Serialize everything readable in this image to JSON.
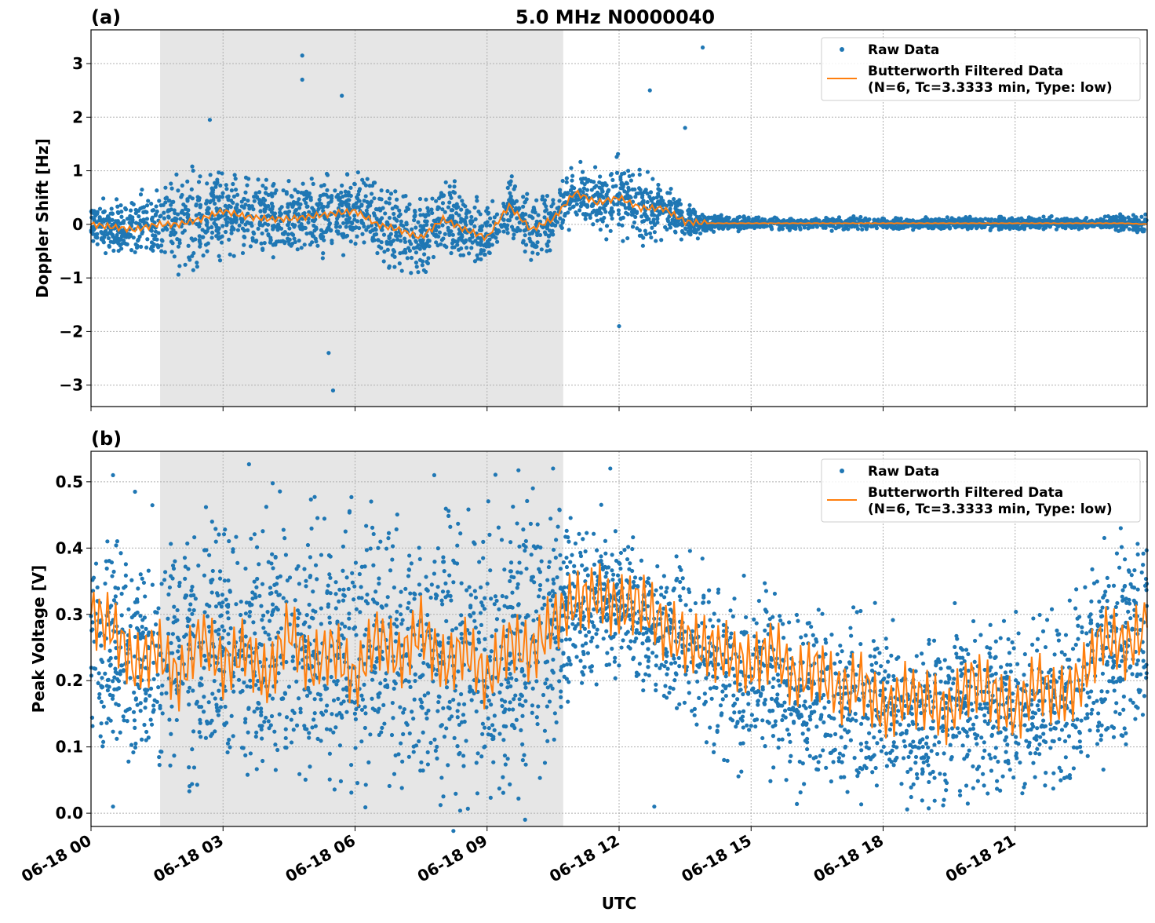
{
  "title": "5.0 MHz N0000040",
  "xlabel": "UTC",
  "colors": {
    "raw": "#1f77b4",
    "filtered": "#ff7f0e",
    "shade": "#e6e6e6"
  },
  "chart_data": [
    {
      "type": "scatter",
      "panel_label": "(a)",
      "ylabel": "Doppler Shift [Hz]",
      "xlim_hours": [
        0,
        24
      ],
      "ylim": [
        -3.4,
        3.63
      ],
      "x_ticks": [
        "06-18 00",
        "06-18 03",
        "06-18 06",
        "06-18 09",
        "06-18 12",
        "06-18 15",
        "06-18 18",
        "06-18 21"
      ],
      "x_tick_hours": [
        0,
        3,
        6,
        9,
        12,
        15,
        18,
        21
      ],
      "y_ticks": [
        "3",
        "2",
        "1",
        "0",
        "−1",
        "−2",
        "−3"
      ],
      "y_tick_values": [
        3,
        2,
        1,
        0,
        -1,
        -2,
        -3
      ],
      "grid": true,
      "shaded_interval_hours": [
        1.57,
        10.73
      ],
      "legend": {
        "position": "top-right",
        "entries": [
          "Raw Data",
          "Butterworth Filtered Data",
          "(N=6, Tc=3.3333 min, Type: low)"
        ]
      },
      "raw_envelope": {
        "hours": [
          0,
          1,
          2,
          3,
          4,
          5,
          6,
          7,
          8,
          9,
          10,
          11,
          12,
          13,
          14,
          15,
          16,
          17,
          18,
          19,
          20,
          21,
          22,
          23,
          24
        ],
        "low": [
          -0.4,
          -0.5,
          -0.8,
          -0.6,
          -0.5,
          -0.6,
          -0.6,
          -0.9,
          -0.8,
          -0.6,
          -0.4,
          -0.1,
          -0.1,
          -0.1,
          -0.1,
          -0.1,
          -0.1,
          -0.1,
          -0.1,
          -0.1,
          -0.1,
          -0.1,
          -0.1,
          -0.1,
          -0.3
        ],
        "high": [
          0.3,
          0.5,
          0.9,
          0.9,
          0.8,
          0.8,
          0.7,
          0.5,
          0.5,
          0.5,
          0.7,
          0.8,
          1.2,
          0.8,
          0.2,
          0.1,
          0.1,
          0.1,
          0.1,
          0.1,
          0.1,
          0.1,
          0.1,
          0.1,
          0.1
        ]
      },
      "raw_outliers": [
        [
          4.8,
          3.15
        ],
        [
          5.5,
          -3.1
        ],
        [
          5.4,
          -2.4
        ],
        [
          13.9,
          3.3
        ],
        [
          12.7,
          2.5
        ],
        [
          12.0,
          -1.9
        ],
        [
          5.7,
          2.4
        ],
        [
          4.8,
          2.7
        ],
        [
          2.7,
          1.95
        ],
        [
          13.5,
          1.8
        ]
      ],
      "filtered": {
        "step_hours": 0.5,
        "values": [
          0,
          -0.05,
          -0.1,
          0,
          0,
          0.1,
          0.25,
          0.15,
          0.1,
          0.1,
          0.15,
          0.2,
          0.25,
          0,
          -0.1,
          -0.25,
          0.1,
          -0.1,
          -0.25,
          0.35,
          -0.1,
          0.1,
          0.6,
          0.4,
          0.5,
          0.3,
          0.3,
          0.05,
          0.02,
          0.02,
          0.02,
          0.02,
          0.02,
          0.02,
          0.02,
          0.02,
          0.02,
          0.02,
          0.02,
          0.02,
          0.02,
          0.02,
          0.02,
          0.02,
          0.02,
          0.02,
          0.02,
          0.02,
          0.0
        ]
      }
    },
    {
      "type": "scatter",
      "panel_label": "(b)",
      "ylabel": "Peak Voltage [V]",
      "xlim_hours": [
        0,
        24
      ],
      "ylim": [
        -0.02,
        0.546
      ],
      "y_ticks": [
        "0.5",
        "0.4",
        "0.3",
        "0.2",
        "0.1",
        "0.0"
      ],
      "y_tick_values": [
        0.5,
        0.4,
        0.3,
        0.2,
        0.1,
        0.0
      ],
      "grid": true,
      "shaded_interval_hours": [
        1.57,
        10.73
      ],
      "legend": {
        "position": "top-right",
        "entries": [
          "Raw Data",
          "Butterworth Filtered Data",
          "(N=6, Tc=3.3333 min, Type: low)"
        ]
      },
      "raw_envelope": {
        "hours": [
          0,
          1,
          2,
          3,
          4,
          5,
          6,
          7,
          8,
          9,
          10,
          11,
          12,
          13,
          14,
          15,
          16,
          17,
          18,
          19,
          20,
          21,
          22,
          23,
          24
        ],
        "low": [
          0.15,
          0.08,
          0.08,
          0.07,
          0.07,
          0.07,
          0.07,
          0.07,
          0.07,
          0.07,
          0.08,
          0.22,
          0.22,
          0.18,
          0.12,
          0.1,
          0.07,
          0.05,
          0.04,
          0.04,
          0.04,
          0.05,
          0.05,
          0.1,
          0.15
        ],
        "high": [
          0.4,
          0.38,
          0.4,
          0.42,
          0.42,
          0.43,
          0.42,
          0.4,
          0.42,
          0.42,
          0.44,
          0.42,
          0.4,
          0.38,
          0.34,
          0.32,
          0.3,
          0.28,
          0.26,
          0.26,
          0.28,
          0.28,
          0.3,
          0.38,
          0.4
        ]
      },
      "raw_outliers": [
        [
          0.5,
          0.51
        ],
        [
          11.8,
          0.52
        ],
        [
          10.5,
          0.52
        ],
        [
          1.0,
          0.485
        ],
        [
          23.4,
          0.43
        ],
        [
          12.8,
          0.01
        ],
        [
          0.5,
          0.01
        ],
        [
          7.8,
          0.51
        ]
      ],
      "filtered": {
        "step_hours": 0.5,
        "values": [
          0.3,
          0.28,
          0.22,
          0.25,
          0.2,
          0.27,
          0.22,
          0.25,
          0.2,
          0.28,
          0.22,
          0.25,
          0.2,
          0.27,
          0.23,
          0.28,
          0.22,
          0.25,
          0.2,
          0.26,
          0.24,
          0.29,
          0.32,
          0.33,
          0.31,
          0.32,
          0.28,
          0.26,
          0.25,
          0.24,
          0.22,
          0.25,
          0.2,
          0.22,
          0.18,
          0.2,
          0.15,
          0.18,
          0.17,
          0.15,
          0.2,
          0.18,
          0.15,
          0.2,
          0.17,
          0.2,
          0.27,
          0.25,
          0.28
        ]
      }
    }
  ]
}
